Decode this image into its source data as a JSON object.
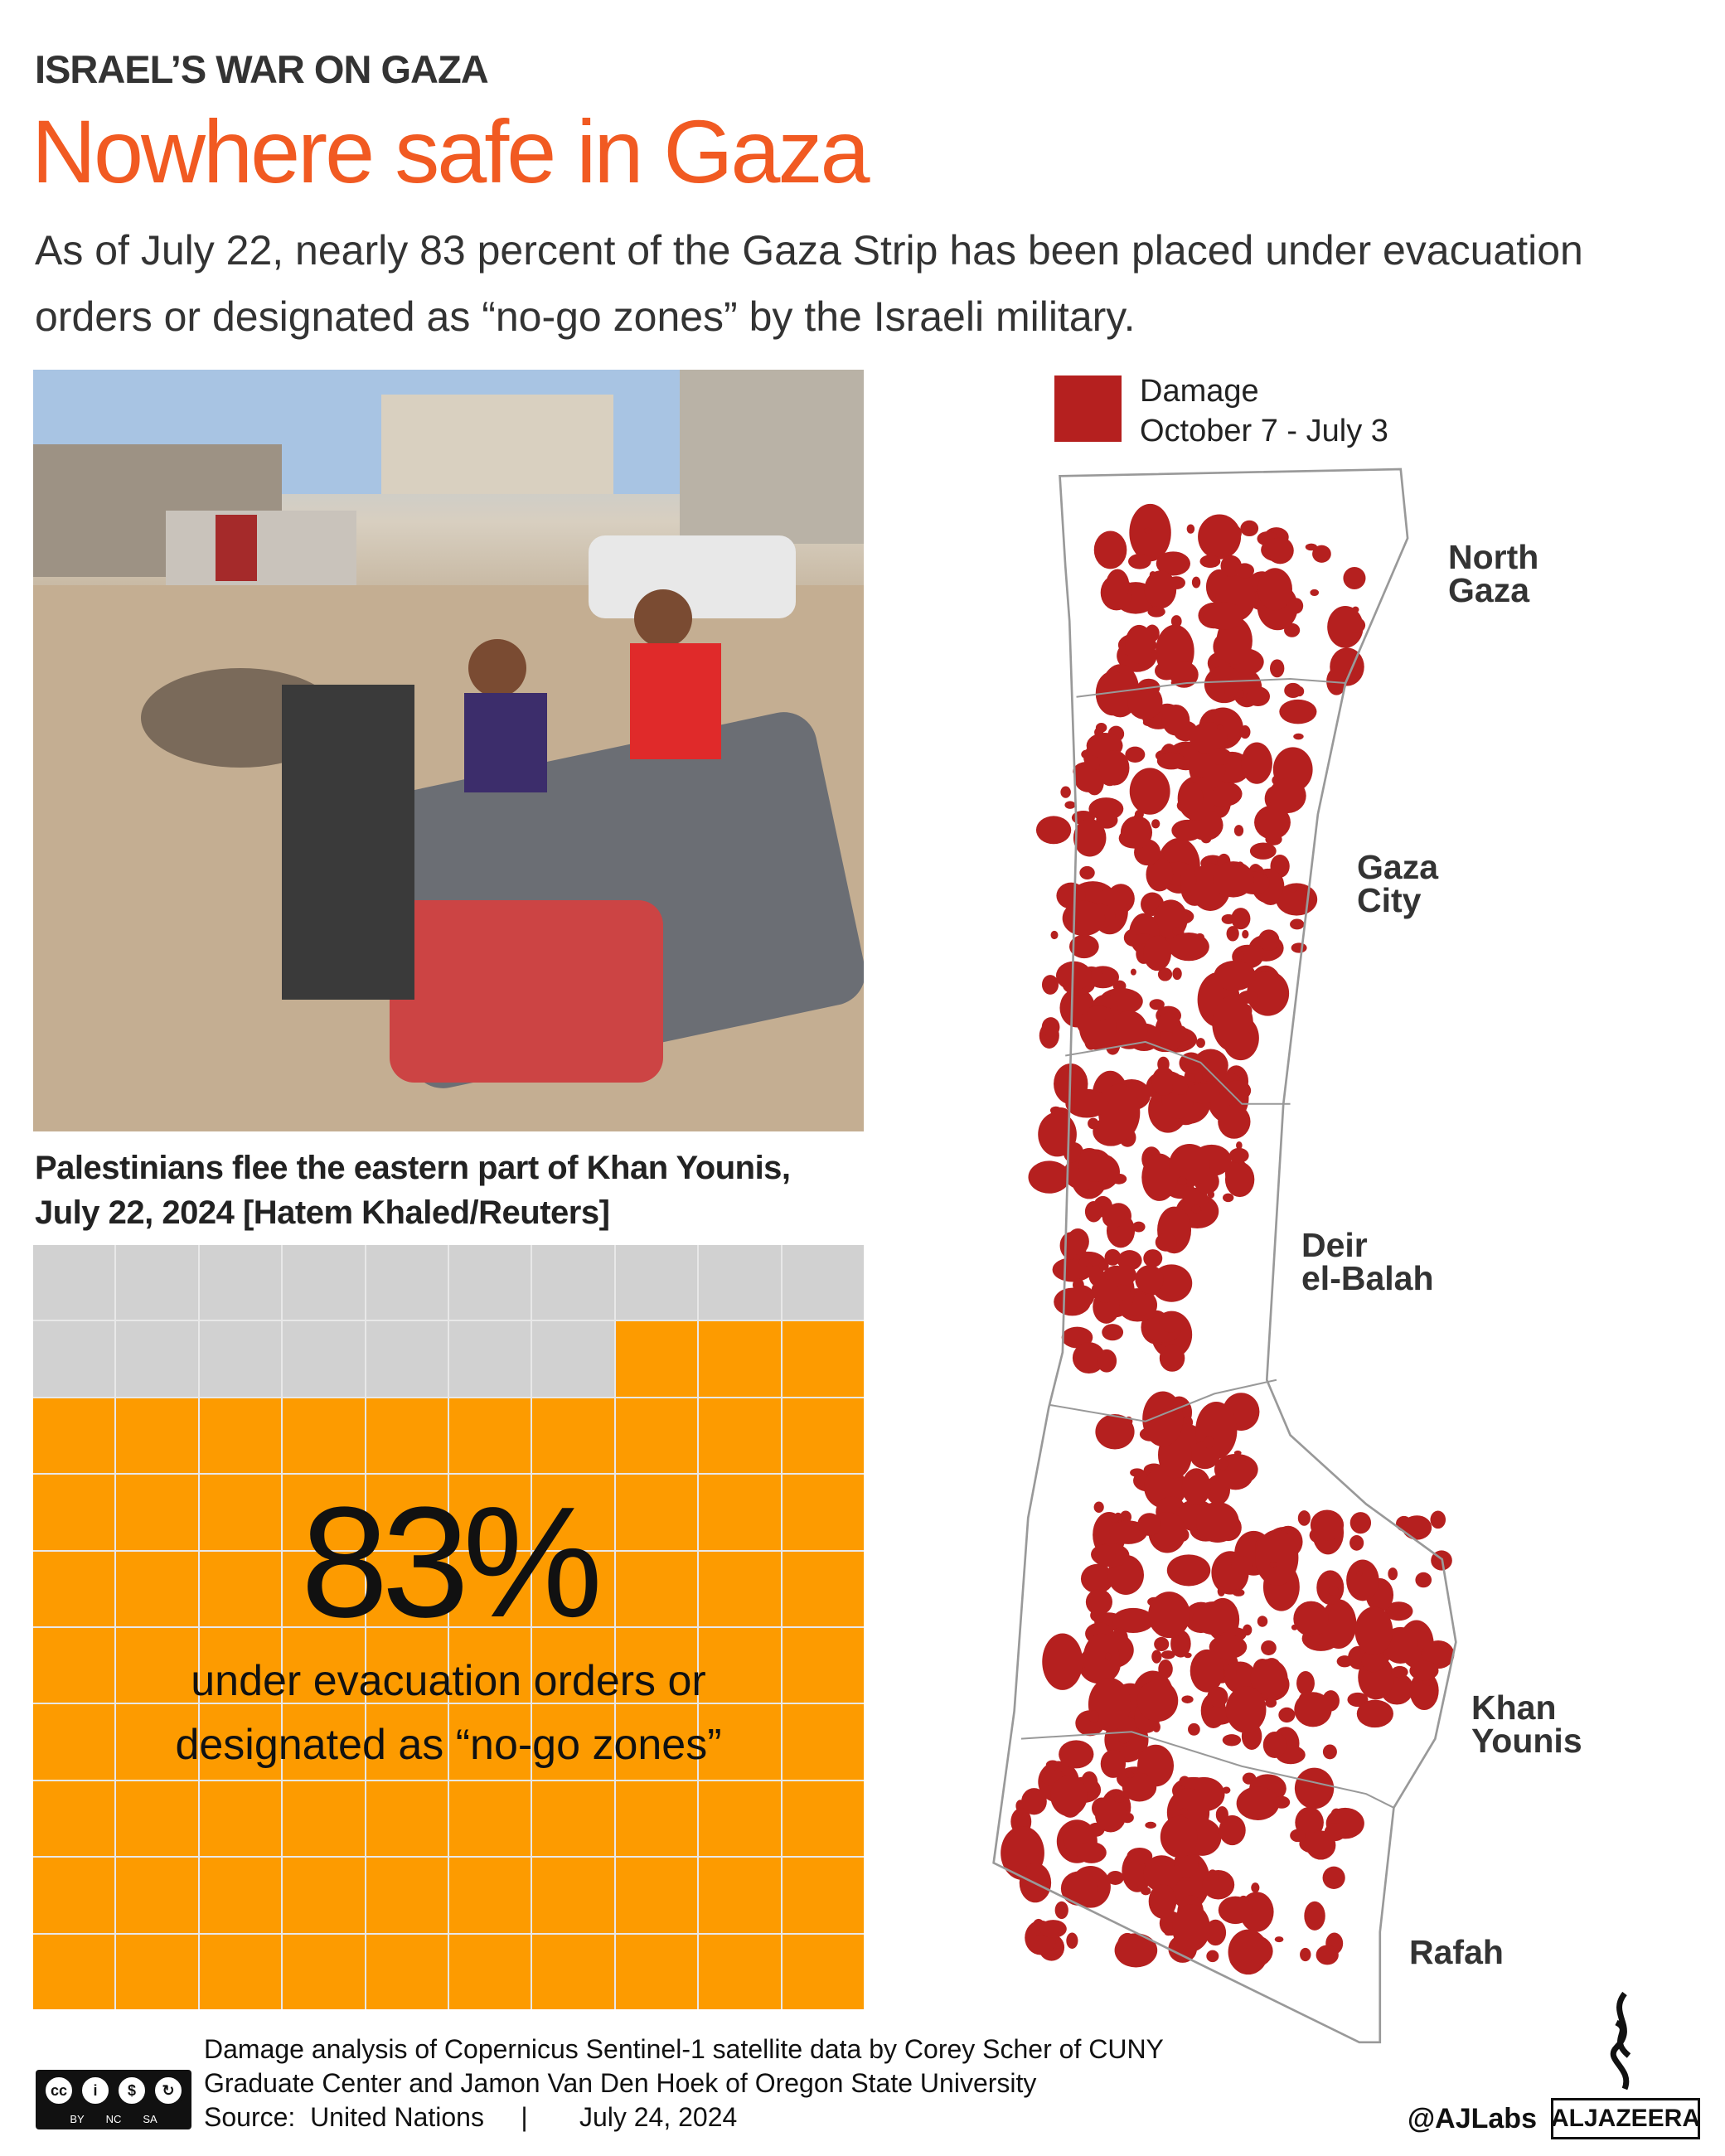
{
  "header": {
    "kicker": "ISRAEL’S WAR ON GAZA",
    "title": "Nowhere safe in Gaza",
    "subtitle": "As of July 22, nearly 83 percent of the Gaza Strip has been placed under evacuation orders or designated as “no-go zones” by the Israeli military."
  },
  "photo": {
    "caption_line1": "Palestinians flee the eastern part of Khan Younis,",
    "caption_line2": "July 22, 2024 [Hatem Khaled/Reuters]"
  },
  "waffle": {
    "percent_value": 83,
    "total_cells": 100,
    "big_label": "83%",
    "label_line1": "under evacuation orders or",
    "label_line2": "designated as “no-go zones”",
    "colors": {
      "on": "#fd9b00",
      "off": "#d1d1d1"
    }
  },
  "map": {
    "legend_line1": "Damage",
    "legend_line2": "October 7 - July 3",
    "damage_color": "#b5201f",
    "regions": [
      {
        "line1": "North",
        "line2": "Gaza"
      },
      {
        "line1": "Gaza",
        "line2": "City"
      },
      {
        "line1": "Deir",
        "line2": "el-Balah"
      },
      {
        "line1": "Khan",
        "line2": "Younis"
      },
      {
        "line1": "Rafah",
        "line2": ""
      }
    ]
  },
  "footer": {
    "credit_line1": "Damage analysis of Copernicus Sentinel-1 satellite data by Corey Scher of CUNY",
    "credit_line2": "Graduate Center and Jamon Van Den Hoek of Oregon State University",
    "source": "Source:  United Nations     |       July 24, 2024",
    "license": [
      "BY",
      "NC",
      "SA"
    ],
    "handle": "@AJLabs",
    "brand": "ALJAZEERA"
  }
}
